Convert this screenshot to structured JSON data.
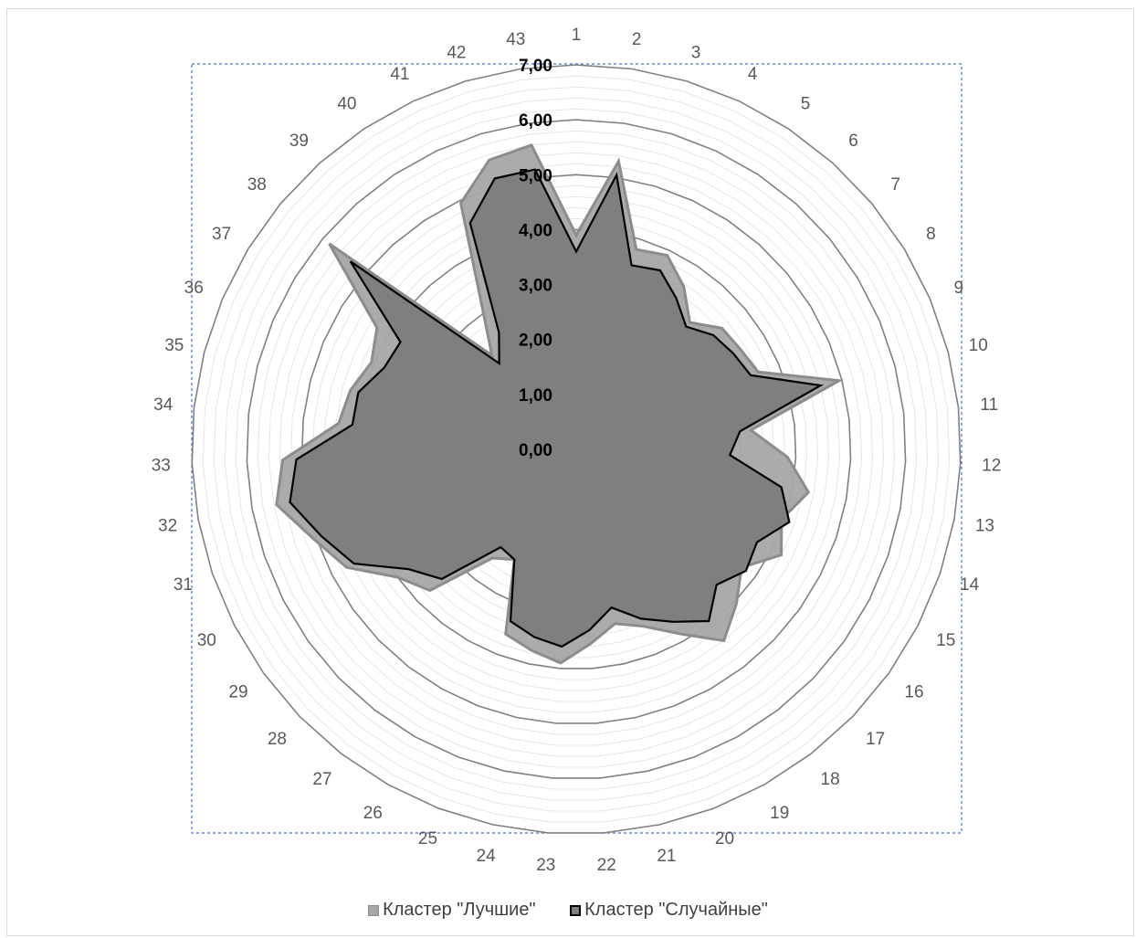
{
  "chart_data": {
    "type": "radar",
    "title": "",
    "categories": [
      "1",
      "2",
      "3",
      "4",
      "5",
      "6",
      "7",
      "8",
      "9",
      "10",
      "11",
      "12",
      "13",
      "14",
      "15",
      "16",
      "17",
      "18",
      "19",
      "20",
      "21",
      "22",
      "23",
      "24",
      "25",
      "26",
      "27",
      "28",
      "29",
      "30",
      "31",
      "32",
      "33",
      "34",
      "35",
      "36",
      "37",
      "38",
      "39",
      "40",
      "41",
      "42",
      "43"
    ],
    "rlim": [
      0,
      7
    ],
    "tick_values": [
      0,
      1,
      2,
      3,
      4,
      5,
      6,
      7
    ],
    "tick_labels": [
      "0,00",
      "1,00",
      "2,00",
      "3,00",
      "4,00",
      "5,00",
      "6,00",
      "7,00"
    ],
    "series": [
      {
        "name": "Кластер \"Лучшие\"",
        "fill": "#a6a6a6",
        "stroke": "#8c8c8c",
        "values": [
          3.9,
          5.3,
          3.8,
          3.9,
          3.55,
          3.1,
          3.45,
          3.5,
          3.6,
          4.95,
          3.2,
          3.85,
          4.3,
          3.95,
          4.2,
          3.7,
          4.05,
          4.4,
          3.85,
          3.45,
          3.25,
          3.55,
          3.9,
          3.75,
          3.6,
          2.3,
          2.5,
          3.7,
          4.0,
          4.7,
          5.05,
          5.55,
          5.35,
          4.35,
          4.25,
          4.05,
          4.25,
          5.85,
          2.3,
          3.1,
          4.95,
          5.5,
          5.6
        ],
        "legend_swatch": "#a6a6a6"
      },
      {
        "name": "Кластер \"Случайные\"",
        "fill": "#7f7f7f",
        "stroke": "#000000",
        "values": [
          3.6,
          5.05,
          3.5,
          3.6,
          3.3,
          3.0,
          3.25,
          3.35,
          3.45,
          4.6,
          3.0,
          2.8,
          3.8,
          4.1,
          3.7,
          3.8,
          3.55,
          3.95,
          3.6,
          3.3,
          2.95,
          3.3,
          3.6,
          3.5,
          3.35,
          2.3,
          2.25,
          3.4,
          3.75,
          4.55,
          4.9,
          5.3,
          5.1,
          4.1,
          4.1,
          3.8,
          3.75,
          5.35,
          2.1,
          2.55,
          4.55,
          5.15,
          5.15
        ],
        "legend_swatch": "#7f7f7f"
      }
    ],
    "legend_position": "bottom",
    "grid": true
  },
  "legend": {
    "items": [
      {
        "label": "Кластер \"Лучшие\"",
        "swatch_fill": "#a6a6a6",
        "swatch_border": "#8c8c8c"
      },
      {
        "label": "Кластер \"Случайные\"",
        "swatch_fill": "#7f7f7f",
        "swatch_border": "#000000"
      }
    ]
  }
}
